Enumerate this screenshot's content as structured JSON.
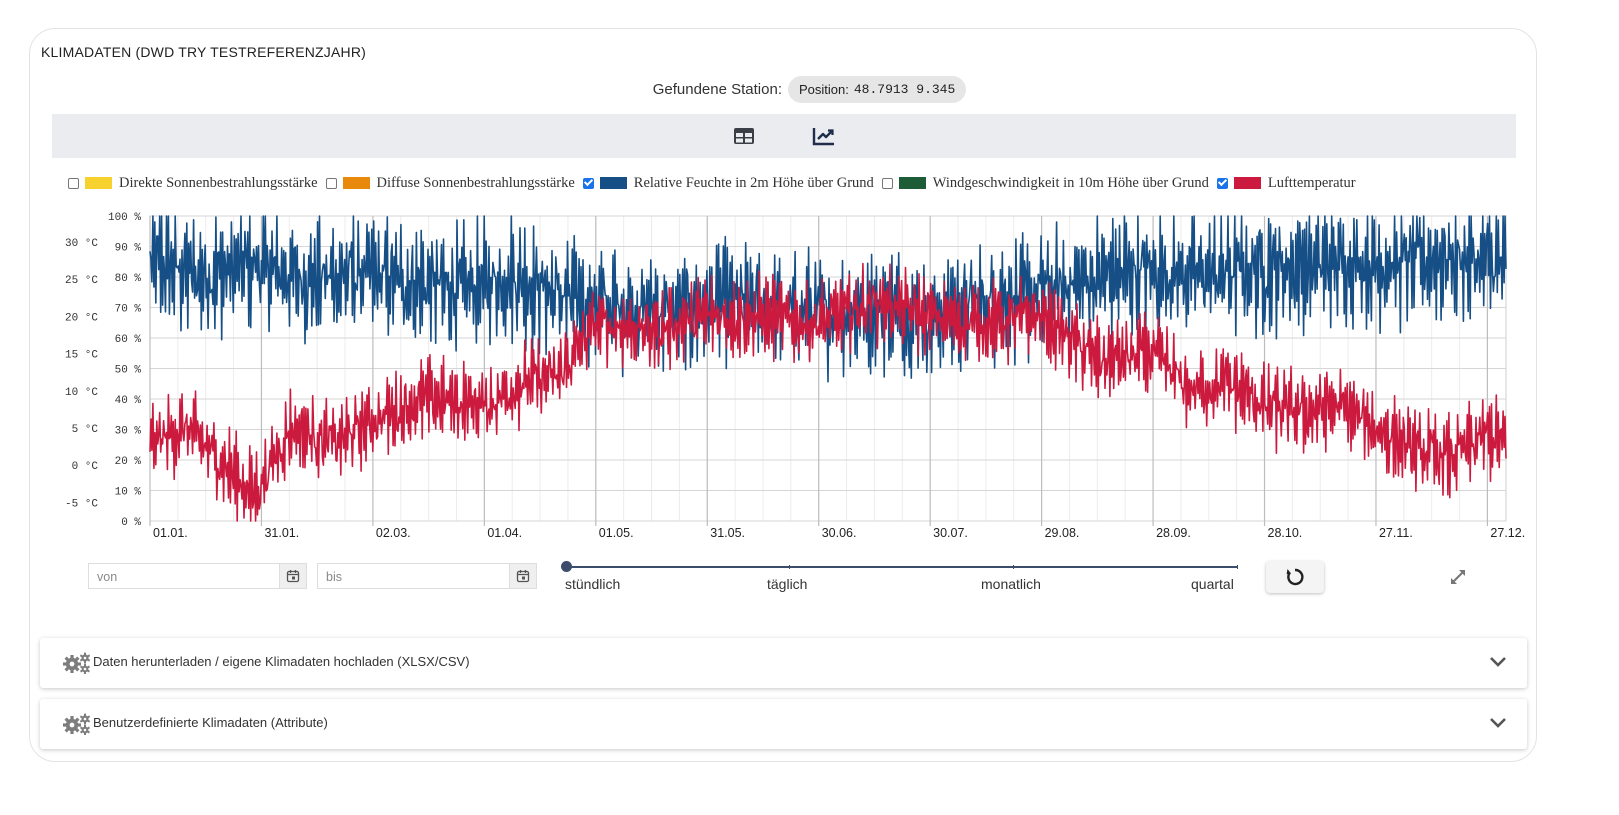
{
  "card": {
    "title": "KLIMADATEN (DWD TRY TESTREFERENZJAHR)"
  },
  "station": {
    "label": "Gefundene Station:",
    "chip_label": "Position:",
    "coords": "48.7913 9.345"
  },
  "toolbar": {
    "table_icon": "table-icon",
    "chart_icon": "line-chart-icon",
    "active": "chart"
  },
  "legend": [
    {
      "label": "Direkte Sonnenbestrahlungsstärke",
      "color": "#f7d12e",
      "checked": false
    },
    {
      "label": "Diffuse Sonnenbestrahlungsstärke",
      "color": "#e8890c",
      "checked": false
    },
    {
      "label": "Relative Feuchte in 2m Höhe über Grund",
      "color": "#164f86",
      "checked": true
    },
    {
      "label": "Windgeschwindigkeit in 10m Höhe über Grund",
      "color": "#1e5c38",
      "checked": false
    },
    {
      "label": "Lufttemperatur",
      "color": "#cc1a3e",
      "checked": true
    }
  ],
  "chart_data": {
    "type": "line",
    "x_ticks": [
      "01.01.",
      "31.01.",
      "02.03.",
      "01.04.",
      "01.05.",
      "31.05.",
      "30.06.",
      "30.07.",
      "29.08.",
      "28.09.",
      "28.10.",
      "27.11.",
      "27.12."
    ],
    "y_left": {
      "label": "Lufttemperatur",
      "ticks": [
        "30 °C",
        "25 °C",
        "20 °C",
        "15 °C",
        "10 °C",
        "5 °C",
        "0 °C",
        "-5 °C"
      ],
      "values": [
        30,
        25,
        20,
        15,
        10,
        5,
        0,
        -5
      ],
      "range": [
        -7.5,
        33.5
      ]
    },
    "y_right": {
      "label": "Relative Feuchte",
      "ticks": [
        "100 %",
        "90 %",
        "80 %",
        "70 %",
        "60 %",
        "50 %",
        "40 %",
        "30 %",
        "20 %",
        "10 %",
        "0 %"
      ],
      "values": [
        100,
        90,
        80,
        70,
        60,
        50,
        40,
        30,
        20,
        10,
        0
      ],
      "range": [
        0,
        100
      ]
    },
    "x_range_days": [
      0,
      365
    ],
    "grid": true,
    "series": [
      {
        "name": "Relative Feuchte in 2m Höhe über Grund",
        "color": "#164f86",
        "axis": "humidity",
        "points": [
          [
            0,
            85
          ],
          [
            14,
            80
          ],
          [
            28,
            84
          ],
          [
            42,
            79
          ],
          [
            56,
            81
          ],
          [
            70,
            78
          ],
          [
            84,
            76
          ],
          [
            98,
            80
          ],
          [
            112,
            73
          ],
          [
            126,
            70
          ],
          [
            140,
            68
          ],
          [
            154,
            72
          ],
          [
            168,
            69
          ],
          [
            182,
            68
          ],
          [
            196,
            70
          ],
          [
            210,
            67
          ],
          [
            224,
            72
          ],
          [
            238,
            74
          ],
          [
            252,
            79
          ],
          [
            266,
            82
          ],
          [
            280,
            81
          ],
          [
            294,
            82
          ],
          [
            308,
            83
          ],
          [
            322,
            85
          ],
          [
            336,
            84
          ],
          [
            350,
            86
          ],
          [
            365,
            84
          ]
        ],
        "swing": 22
      },
      {
        "name": "Lufttemperatur",
        "color": "#cc1a3e",
        "axis": "temperature",
        "points": [
          [
            0,
            3
          ],
          [
            10,
            5
          ],
          [
            20,
            0
          ],
          [
            28,
            -4
          ],
          [
            38,
            5
          ],
          [
            50,
            3
          ],
          [
            60,
            6
          ],
          [
            75,
            9
          ],
          [
            90,
            8
          ],
          [
            100,
            11
          ],
          [
            110,
            12
          ],
          [
            120,
            19
          ],
          [
            135,
            18
          ],
          [
            150,
            20
          ],
          [
            165,
            20
          ],
          [
            180,
            19
          ],
          [
            195,
            22
          ],
          [
            210,
            20
          ],
          [
            225,
            19
          ],
          [
            240,
            20
          ],
          [
            255,
            14
          ],
          [
            270,
            15
          ],
          [
            280,
            10
          ],
          [
            290,
            11
          ],
          [
            300,
            8
          ],
          [
            310,
            7
          ],
          [
            320,
            8
          ],
          [
            330,
            5
          ],
          [
            340,
            2
          ],
          [
            350,
            1
          ],
          [
            360,
            4
          ],
          [
            365,
            3
          ]
        ],
        "swing": 6
      }
    ]
  },
  "controls": {
    "from_placeholder": "von",
    "to_placeholder": "bis",
    "resolution_options": [
      "stündlich",
      "täglich",
      "monatlich",
      "quartal"
    ],
    "resolution_selected": "stündlich"
  },
  "accordions": [
    {
      "title": "Daten herunterladen / eigene Klimadaten hochladen (XLSX/CSV)"
    },
    {
      "title": "Benutzerdefinierte Klimadaten (Attribute)"
    }
  ]
}
